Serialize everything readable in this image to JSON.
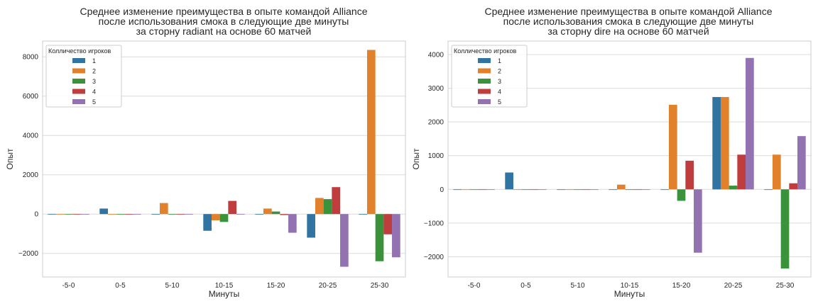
{
  "chart_data": [
    {
      "type": "bar",
      "title_lines": [
        "Среднее изменение преимущества в опыте командой Alliance",
        "после использования смока в следующие две минуты",
        "за сторну radiant на основе 60 матчей"
      ],
      "xlabel": "Минуты",
      "ylabel": "Опыт",
      "ylim": [
        -3200,
        8800
      ],
      "yticks": [
        -2000,
        0,
        2000,
        4000,
        6000,
        8000
      ],
      "categories": [
        "-5-0",
        "0-5",
        "5-10",
        "10-15",
        "15-20",
        "20-25",
        "25-30"
      ],
      "legend_title": "Колличество игроков",
      "legend_position": "top-left",
      "grid": "horizontal",
      "series": [
        {
          "name": "1",
          "color": "#3274a1",
          "values": [
            0,
            280,
            0,
            -850,
            0,
            -1200,
            0
          ]
        },
        {
          "name": "2",
          "color": "#e1812c",
          "values": [
            0,
            0,
            560,
            -320,
            280,
            820,
            8350
          ]
        },
        {
          "name": "3",
          "color": "#3a923a",
          "values": [
            0,
            0,
            0,
            -400,
            130,
            760,
            -2400
          ]
        },
        {
          "name": "4",
          "color": "#c03d3e",
          "values": [
            0,
            0,
            0,
            670,
            -50,
            1370,
            -1030
          ]
        },
        {
          "name": "5",
          "color": "#9372b2",
          "values": [
            0,
            0,
            0,
            0,
            -950,
            -2680,
            -2200
          ]
        }
      ]
    },
    {
      "type": "bar",
      "title_lines": [
        "Среднее изменение преимущества в опыте командой Alliance",
        "после использования смока в следующие две минуты",
        "за сторну dire на основе 60 матчей"
      ],
      "xlabel": "Минуты",
      "ylabel": "Опыт",
      "ylim": [
        -2600,
        4400
      ],
      "yticks": [
        -2000,
        -1000,
        0,
        1000,
        2000,
        3000,
        4000
      ],
      "categories": [
        "-5-0",
        "0-5",
        "5-10",
        "10-15",
        "15-20",
        "20-25",
        "25-30"
      ],
      "legend_title": "Колличество игроков",
      "legend_position": "top-left",
      "grid": "horizontal",
      "series": [
        {
          "name": "1",
          "color": "#3274a1",
          "values": [
            0,
            500,
            0,
            0,
            0,
            2740,
            0
          ]
        },
        {
          "name": "2",
          "color": "#e1812c",
          "values": [
            0,
            0,
            0,
            140,
            2510,
            2740,
            1030
          ]
        },
        {
          "name": "3",
          "color": "#3a923a",
          "values": [
            0,
            0,
            0,
            0,
            -340,
            110,
            -2350
          ]
        },
        {
          "name": "4",
          "color": "#c03d3e",
          "values": [
            0,
            0,
            0,
            0,
            850,
            1030,
            180
          ]
        },
        {
          "name": "5",
          "color": "#9372b2",
          "values": [
            0,
            0,
            0,
            0,
            -1880,
            3900,
            1580
          ]
        }
      ]
    }
  ]
}
